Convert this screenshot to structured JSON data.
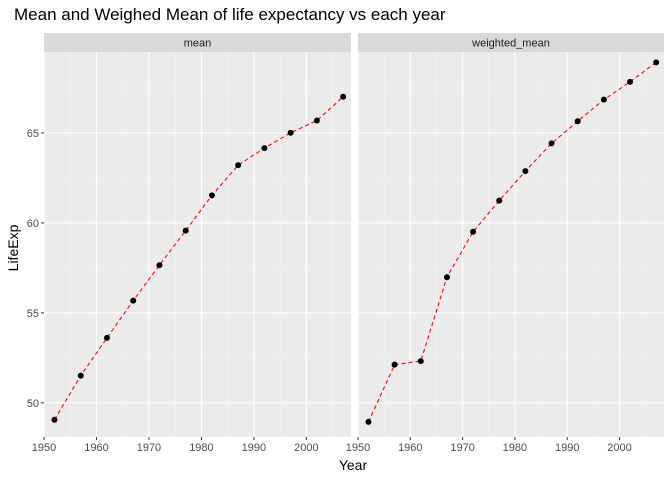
{
  "chart_data": {
    "type": "line",
    "title": "Mean and Weighed Mean of life expectancy vs each year",
    "xlabel": "Year",
    "ylabel": "LifeExp",
    "xlim": [
      1950,
      2008.5
    ],
    "ylim": [
      48.1,
      69.5
    ],
    "x_ticks": [
      1950,
      1960,
      1970,
      1980,
      1990,
      2000
    ],
    "y_ticks": [
      50,
      55,
      60,
      65
    ],
    "grid": true,
    "line_style": "dashed",
    "line_color": "#ff0000",
    "point_color": "#000000",
    "panel_background": "#ebebeb",
    "strip_background": "#d9d9d9",
    "facets": [
      {
        "label": "mean",
        "x": [
          1952,
          1957,
          1962,
          1967,
          1972,
          1977,
          1982,
          1987,
          1992,
          1997,
          2002,
          2007
        ],
        "y": [
          49.06,
          51.51,
          53.61,
          55.68,
          57.65,
          59.57,
          61.53,
          63.21,
          64.16,
          65.01,
          65.69,
          67.01
        ]
      },
      {
        "label": "weighted_mean",
        "x": [
          1952,
          1957,
          1962,
          1967,
          1972,
          1977,
          1982,
          1987,
          1992,
          1997,
          2002,
          2007
        ],
        "y": [
          48.94,
          52.12,
          52.32,
          56.98,
          59.51,
          61.24,
          62.88,
          64.42,
          65.65,
          66.85,
          67.84,
          68.92
        ]
      }
    ]
  }
}
